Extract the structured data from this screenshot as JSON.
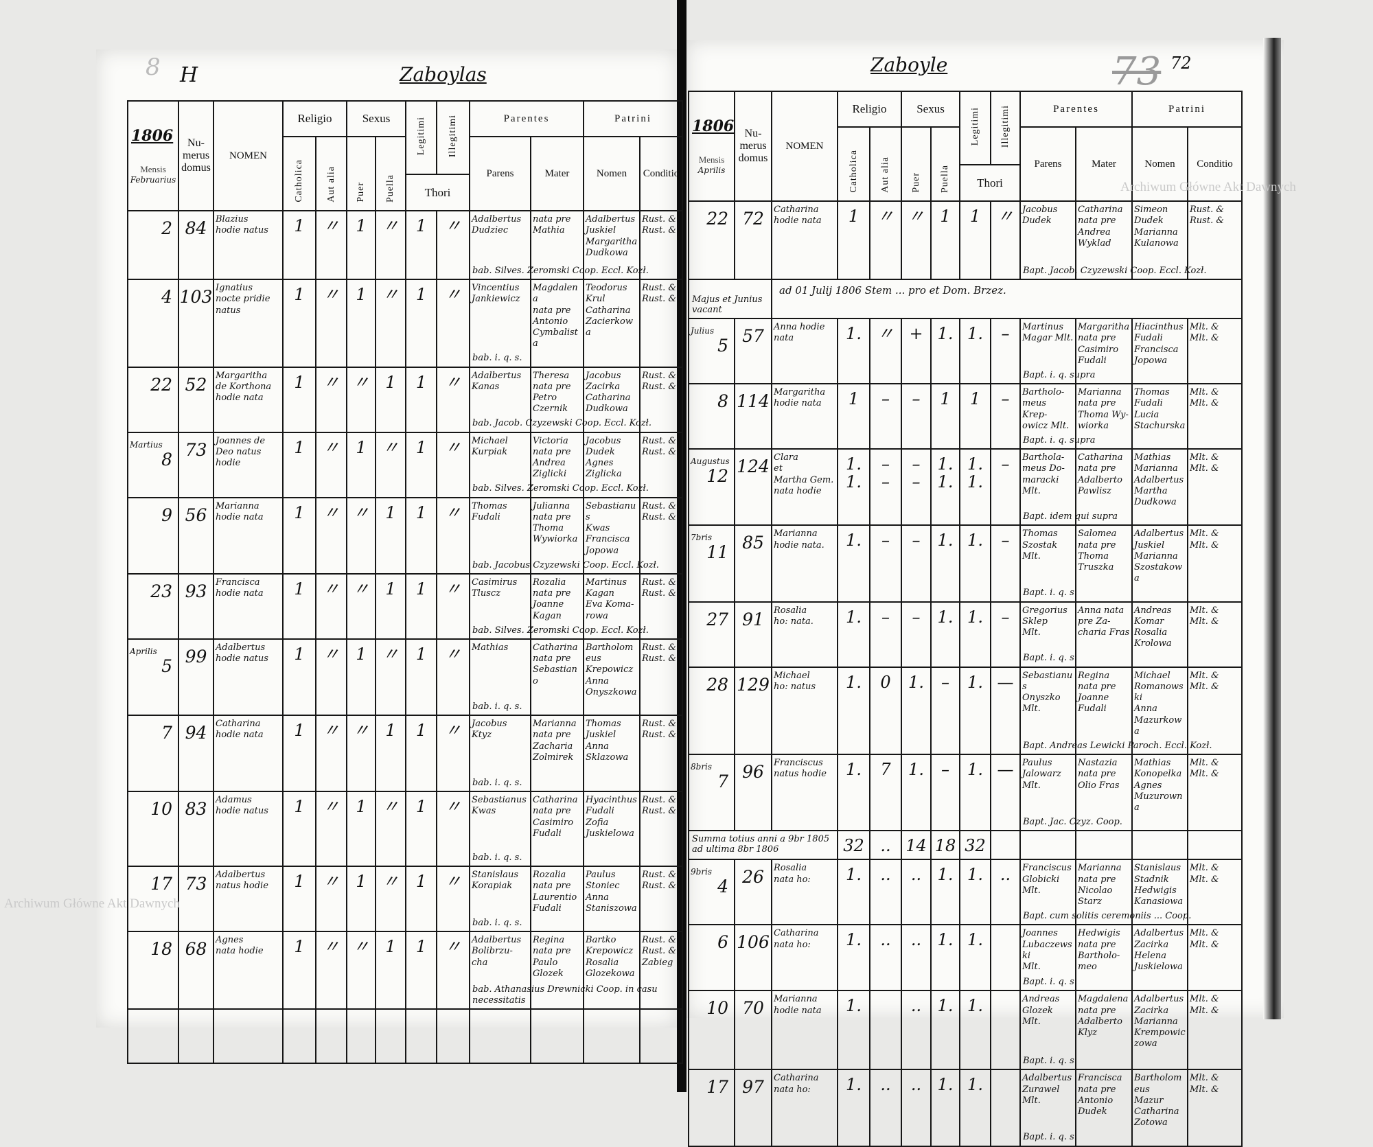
{
  "headers": {
    "mensis": "Mensis",
    "numerus": "Nu-\nmerus\ndomus",
    "nomen": "NOMEN",
    "religio": "Religio",
    "catholica": "Catholica",
    "aut_alia": "Aut alia",
    "sexus": "Sexus",
    "puer": "Puer",
    "puella": "Puella",
    "legitimi": "Legitimi",
    "illegitimi": "Illegitimi",
    "thori": "Thori",
    "parentes": "Parentes",
    "parens": "Parens",
    "mater": "Mater",
    "patrini": "Patrini",
    "patrini_nomen": "Nomen",
    "conditio": "Conditio"
  },
  "watermarks": [
    "Archiwum Główne Akt Dawnych",
    "Archiwum Główne Akt Dawnych"
  ],
  "left_page": {
    "marks": [
      "8",
      "H"
    ],
    "place": "Zaboylas",
    "year": "1806",
    "header_month": "Februarius",
    "rows": [
      {
        "day": "2",
        "house": "84",
        "nomen": "Blazius\nhodie natus",
        "ticks": [
          "1",
          "〃",
          "1",
          "〃",
          "1",
          "〃"
        ],
        "parens": "Adalbertus\nDudziec",
        "mater": "nata pre\nMathia",
        "patrini": "Adalbertus\nJuskiel\nMargaritha\nDudkowa",
        "conditio": "Rust. &\nRust. &",
        "bapt": "bab. Silves. Zeromski Coop. Eccl. Kozł."
      },
      {
        "day": "4",
        "house": "103",
        "nomen": "Ignatius\nnocte pridie\nnatus",
        "ticks": [
          "1",
          "〃",
          "1",
          "〃",
          "1",
          "〃"
        ],
        "parens": "Vincentius\nJankiewicz",
        "mater": "Magdalena\nnata pre\nAntonio\nCymbalista",
        "patrini": "Teodorus\nKrul\nCatharina\nZacierkowa",
        "conditio": "Rust. &\nRust. &",
        "bapt": "bab. i. q. s."
      },
      {
        "day": "22",
        "house": "52",
        "nomen": "Margaritha\nde Korthona\nhodie nata",
        "ticks": [
          "1",
          "〃",
          "〃",
          "1",
          "1",
          "〃"
        ],
        "parens": "Adalbertus\nKanas",
        "mater": "Theresa\nnata pre\nPetro\nCzernik",
        "patrini": "Jacobus\nZacirka\nCatharina\nDudkowa",
        "conditio": "Rust. &\nRust. &",
        "bapt": "bab. Jacob. Czyzewski Coop. Eccl. Kozł."
      },
      {
        "month": "Martius",
        "day": "8",
        "house": "73",
        "nomen": "Joannes de\nDeo natus\nhodie",
        "ticks": [
          "1",
          "〃",
          "1",
          "〃",
          "1",
          "〃"
        ],
        "parens": "Michael\nKurpiak",
        "mater": "Victoria\nnata pre\nAndrea\nZiglicki",
        "patrini": "Jacobus\nDudek\nAgnes\nZiglicka",
        "conditio": "Rust. &\nRust. &",
        "bapt": "bab. Silves. Zeromski Coop. Eccl. Kozł."
      },
      {
        "day": "9",
        "house": "56",
        "nomen": "Marianna\nhodie nata",
        "ticks": [
          "1",
          "〃",
          "〃",
          "1",
          "1",
          "〃"
        ],
        "parens": "Thomas\nFudali",
        "mater": "Julianna\nnata pre\nThoma\nWywiorka",
        "patrini": "Sebastianus\nKwas\nFrancisca\nJopowa",
        "conditio": "Rust. &\nRust. &",
        "bapt": "bab. Jacobus Czyzewski Coop. Eccl. Kozł."
      },
      {
        "day": "23",
        "house": "93",
        "nomen": "Francisca\nhodie nata",
        "ticks": [
          "1",
          "〃",
          "〃",
          "1",
          "1",
          "〃"
        ],
        "parens": "Casimirus\nTluscz",
        "mater": "Rozalia\nnata pre\nJoanne\nKagan",
        "patrini": "Martinus\nKagan\nEva Koma-\nrowa",
        "conditio": "Rust. &\nRust. &",
        "bapt": "bab. Silves. Zeromski Coop. Eccl. Kozł."
      },
      {
        "month": "Aprilis",
        "day": "5",
        "house": "99",
        "nomen": "Adalbertus\nhodie natus",
        "ticks": [
          "1",
          "〃",
          "1",
          "〃",
          "1",
          "〃"
        ],
        "parens": "Mathias",
        "mater": "Catharina\nnata pre\nSebastiano",
        "patrini": "Bartholomeus\nKrepowicz\nAnna\nOnyszkowa",
        "conditio": "Rust. &\nRust. &",
        "bapt": "bab. i. q. s."
      },
      {
        "day": "7",
        "house": "94",
        "nomen": "Catharina\nhodie nata",
        "ticks": [
          "1",
          "〃",
          "〃",
          "1",
          "1",
          "〃"
        ],
        "parens": "Jacobus\nKtyz",
        "mater": "Marianna\nnata pre\nZacharia\nZolmirek",
        "patrini": "Thomas\nJuskiel\nAnna\nSklazowa",
        "conditio": "Rust. &\nRust. &",
        "bapt": "bab. i. q. s."
      },
      {
        "day": "10",
        "house": "83",
        "nomen": "Adamus\nhodie natus",
        "ticks": [
          "1",
          "〃",
          "1",
          "〃",
          "1",
          "〃"
        ],
        "parens": "Sebastianus\nKwas",
        "mater": "Catharina\nnata pre\nCasimiro\nFudali",
        "patrini": "Hyacinthus\nFudali\nZofia\nJuskielowa",
        "conditio": "Rust. &\nRust. &",
        "bapt": "bab. i. q. s."
      },
      {
        "day": "17",
        "house": "73",
        "nomen": "Adalbertus\nnatus hodie",
        "ticks": [
          "1",
          "〃",
          "1",
          "〃",
          "1",
          "〃"
        ],
        "parens": "Stanislaus\nKorapiak",
        "mater": "Rozalia\nnata pre\nLaurentio\nFudali",
        "patrini": "Paulus\nStoniec\nAnna\nStaniszowa",
        "conditio": "Rust. &\nRust. &",
        "bapt": "bab. i. q. s."
      },
      {
        "day": "18",
        "house": "68",
        "nomen": "Agnes\nnata hodie",
        "ticks": [
          "1",
          "〃",
          "〃",
          "1",
          "1",
          "〃"
        ],
        "parens": "Adalbertus\nBolibrzu-\ncha",
        "mater": "Regina\nnata pre\nPaulo\nGlozek",
        "patrini": "Bartko\nKrepowicz\nRosalia\nGlozekowa",
        "conditio": "Rust. &\nRust. &\nZabieg",
        "bapt": "bab. Athanasius Drewnicki Coop. in casu necessitatis"
      }
    ]
  },
  "right_page": {
    "place": "Zaboyle",
    "folio_crossed": "73",
    "folio": "72",
    "year": "1806",
    "header_month": "Aprilis",
    "rows": [
      {
        "day": "22",
        "house": "72",
        "nomen": "Catharina\nhodie nata",
        "ticks": [
          "1",
          "〃",
          "〃",
          "1",
          "1",
          "〃"
        ],
        "parens": "Jacobus\nDudek",
        "mater": "Catharina\nnata pre\nAndrea\nWyklad",
        "patrini": "Simeon\nDudek\nMarianna\nKulanowa",
        "conditio": "Rust. &\nRust. &",
        "bapt": "Bapt. Jacob. Czyzewski Coop. Eccl. Kozł."
      },
      {
        "type": "note",
        "month": "Majus et Junius vacant",
        "note": "ad 01 Julij 1806 Stem ... pro et Dom. Brzez."
      },
      {
        "month": "Julius",
        "day": "5",
        "house": "57",
        "nomen": "Anna hodie\nnata",
        "ticks": [
          "1.",
          "〃",
          "+",
          "1.",
          "1.",
          "–"
        ],
        "parens": "Martinus\nMagar Mlt.",
        "mater": "Margaritha\nnata pre\nCasimiro\nFudali",
        "patrini": "Hiacinthus\nFudali\nFrancisca\nJopowa",
        "conditio": "Mlt. &\nMlt. &",
        "bapt": "Bapt. i. q. supra"
      },
      {
        "day": "8",
        "house": "114",
        "nomen": "Margaritha\nhodie nata",
        "ticks": [
          "1",
          "–",
          "–",
          "1",
          "1",
          "–"
        ],
        "parens": "Bartholo-\nmeus Krep-\nowicz Mlt.",
        "mater": "Marianna\nnata pre\nThoma Wy-\nwiorka",
        "patrini": "Thomas\nFudali\nLucia\nStachurska",
        "conditio": "Mlt. &\nMlt. &",
        "bapt": "Bapt. i. q. supra"
      },
      {
        "month": "Augustus",
        "day": "12",
        "house": "124",
        "nomen": "Clara\net\nMartha Gem.\nnata hodie",
        "ticks": [
          "1.\n1.",
          "–\n–",
          "–\n–",
          "1.\n1.",
          "1.\n1.",
          "–"
        ],
        "parens": "Barthola-\nmeus Do-\nmaracki Mlt.",
        "mater": "Catharina\nnata pre\nAdalberto\nPawlisz",
        "patrini": "Mathias\nMarianna\nAdalbertus\nMartha Dudkowa",
        "conditio": "Mlt. &\nMlt. &",
        "bapt": "Bapt. idem qui supra"
      },
      {
        "month": "7bris",
        "day": "11",
        "house": "85",
        "nomen": "Marianna\nhodie nata.",
        "ticks": [
          "1.",
          "–",
          "–",
          "1.",
          "1.",
          "–"
        ],
        "parens": "Thomas\nSzostak\nMlt.",
        "mater": "Salomea\nnata pre\nThoma\nTruszka",
        "patrini": "Adalbertus\nJuskiel\nMarianna\nSzostakowa",
        "conditio": "Mlt. &\nMlt. &",
        "bapt": "Bapt. i. q. s."
      },
      {
        "day": "27",
        "house": "91",
        "nomen": "Rosalia\nho: nata.",
        "ticks": [
          "1.",
          "–",
          "–",
          "1.",
          "1.",
          "–"
        ],
        "parens": "Gregorius\nSklep\nMlt.",
        "mater": "Anna nata\npre Za-\ncharia Fras",
        "patrini": "Andreas\nKomar\nRosalia\nKrolowa",
        "conditio": "Mlt. &\nMlt. &",
        "bapt": "Bapt. i. q. s."
      },
      {
        "day": "28",
        "house": "129",
        "nomen": "Michael\nho: natus",
        "ticks": [
          "1.",
          "0",
          "1.",
          "–",
          "1.",
          "—"
        ],
        "parens": "Sebastianus\nOnyszko\nMlt.",
        "mater": "Regina\nnata pre\nJoanne\nFudali",
        "patrini": "Michael\nRomanowski\nAnna\nMazurkowa",
        "conditio": "Mlt. &\nMlt. &",
        "bapt": "Bapt. Andreas Lewicki Paroch. Eccl. Kozł."
      },
      {
        "month": "8bris",
        "day": "7",
        "house": "96",
        "nomen": "Franciscus\nnatus hodie",
        "ticks": [
          "1.",
          "7",
          "1.",
          "–",
          "1.",
          "—"
        ],
        "parens": "Paulus\nJalowarz\nMlt.",
        "mater": "Nastazia\nnata pre\nOlio Fras",
        "patrini": "Mathias\nKonopelka\nAgnes\nMuzurowna",
        "conditio": "Mlt. &\nMlt. &",
        "bapt": "Bapt. Jac. Czyz. Coop."
      },
      {
        "type": "summary",
        "label": "Summa totius anni a 9br 1805 ad ultima 8br 1806",
        "ticks": [
          "32",
          "..",
          "14",
          "18",
          "32",
          ""
        ]
      },
      {
        "month": "9bris",
        "day": "4",
        "house": "26",
        "nomen": "Rosalia\nnata ho:",
        "ticks": [
          "1.",
          "..",
          "..",
          "1.",
          "1.",
          ".."
        ],
        "parens": "Franciscus\nGlobicki\nMlt.",
        "mater": "Marianna\nnata pre\nNicolao\nStarz",
        "patrini": "Stanislaus\nStadnik\nHedwigis\nKanasiowa",
        "conditio": "Mlt. &\nMlt. &",
        "bapt": "Bapt. cum solitis ceremoniis ... Coop."
      },
      {
        "day": "6",
        "house": "106",
        "nomen": "Catharina\nnata ho:",
        "ticks": [
          "1.",
          "..",
          "..",
          "1.",
          "1.",
          ""
        ],
        "parens": "Joannes\nLubaczewski\nMlt.",
        "mater": "Hedwigis\nnata pre\nBartholo-\nmeo",
        "patrini": "Adalbertus\nZacirka\nHelena\nJuskielowa",
        "conditio": "Mlt. &\nMlt. &",
        "bapt": "Bapt. i. q. s."
      },
      {
        "day": "10",
        "house": "70",
        "nomen": "Marianna\nhodie nata",
        "ticks": [
          "1.",
          "",
          "..",
          "1.",
          "1.",
          ""
        ],
        "parens": "Andreas\nGlozek\nMlt.",
        "mater": "Magdalena\nnata pre\nAdalberto\nKlyz",
        "patrini": "Adalbertus\nZacirka\nMarianna\nKrempowiczowa",
        "conditio": "Mlt. &\nMlt. &",
        "bapt": "Bapt. i. q. s."
      },
      {
        "day": "17",
        "house": "97",
        "nomen": "Catharina\nnata ho:",
        "ticks": [
          "1.",
          "..",
          "..",
          "1.",
          "1.",
          ""
        ],
        "parens": "Adalbertus\nZurawel\nMlt.",
        "mater": "Francisca\nnata pre\nAntonio\nDudek",
        "patrini": "Bartholomeus\nMazur\nCatharina\nZotowa",
        "conditio": "Mlt. &\nMlt. &",
        "bapt": "Bapt. i. q. s."
      }
    ]
  }
}
